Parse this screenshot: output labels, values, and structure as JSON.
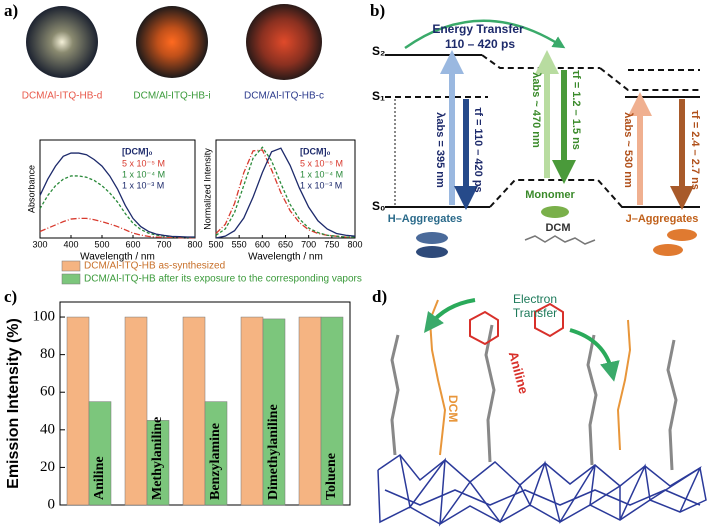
{
  "panel_labels": [
    "a)",
    "b)",
    "c)",
    "d)"
  ],
  "photos": {
    "labels": [
      "DCM/Al-ITQ-HB-d",
      "DCM/Al-ITQ-HB-i",
      "DCM/Al-ITQ-HB-c"
    ],
    "colors": [
      "#e8584a",
      "#3a9a3a",
      "#2b3a8c"
    ]
  },
  "chart_data": [
    {
      "type": "line",
      "ylabel": "Absorbance",
      "xlabel": "Wavelength / nm",
      "legend_title": "[DCM]₀",
      "x": [
        300,
        325,
        350,
        375,
        400,
        425,
        450,
        475,
        500,
        525,
        550,
        575,
        600,
        625,
        650,
        675,
        700,
        725,
        750,
        775,
        800
      ],
      "xlim": [
        300,
        800
      ],
      "xticks": [
        300,
        400,
        500,
        600,
        700,
        800
      ],
      "ylim": [
        0,
        0.3
      ],
      "series": [
        {
          "name": "5 x 10⁻⁵ M",
          "color": "#d83a2e",
          "dash": "6 2 1 2",
          "values": [
            0.02,
            0.03,
            0.04,
            0.05,
            0.058,
            0.06,
            0.06,
            0.056,
            0.05,
            0.043,
            0.035,
            0.025,
            0.015,
            0.009,
            0.005,
            0.003,
            0.002,
            0.002,
            0.001,
            0.001,
            0.001
          ]
        },
        {
          "name": "1 x 10⁻⁴ M",
          "color": "#2a8a3a",
          "dash": "3 2",
          "values": [
            0.09,
            0.13,
            0.16,
            0.18,
            0.19,
            0.19,
            0.186,
            0.176,
            0.16,
            0.138,
            0.11,
            0.075,
            0.045,
            0.026,
            0.015,
            0.009,
            0.006,
            0.004,
            0.003,
            0.002,
            0.002
          ]
        },
        {
          "name": "1 x 10⁻³ M",
          "color": "#1d2a6b",
          "dash": "",
          "values": [
            0.13,
            0.18,
            0.22,
            0.25,
            0.26,
            0.26,
            0.255,
            0.24,
            0.22,
            0.19,
            0.15,
            0.1,
            0.06,
            0.035,
            0.02,
            0.012,
            0.008,
            0.005,
            0.004,
            0.003,
            0.003
          ]
        }
      ]
    },
    {
      "type": "line",
      "ylabel": "Normalized Intensity",
      "xlabel": "Wavelength / nm",
      "legend_title": "[DCM]₀",
      "x": [
        500,
        520,
        540,
        560,
        580,
        600,
        620,
        640,
        660,
        680,
        700,
        720,
        740,
        760,
        780,
        800
      ],
      "xlim": [
        500,
        800
      ],
      "xticks": [
        500,
        550,
        600,
        650,
        700,
        750,
        800
      ],
      "ylim": [
        0,
        1.08
      ],
      "series": [
        {
          "name": "5 x 10⁻⁵ M",
          "color": "#d83a2e",
          "dash": "6 2 1 2",
          "values": [
            0.05,
            0.15,
            0.38,
            0.72,
            0.96,
            0.97,
            0.75,
            0.5,
            0.3,
            0.17,
            0.09,
            0.05,
            0.03,
            0.02,
            0.01,
            0.01
          ]
        },
        {
          "name": "1 x 10⁻⁴ M",
          "color": "#2a8a3a",
          "dash": "3 2",
          "values": [
            0.03,
            0.1,
            0.28,
            0.58,
            0.88,
            1.0,
            0.85,
            0.6,
            0.37,
            0.21,
            0.11,
            0.06,
            0.03,
            0.02,
            0.01,
            0.01
          ]
        },
        {
          "name": "1 x 10⁻³ M",
          "color": "#1d2a6b",
          "dash": "",
          "values": [
            0.0,
            0.02,
            0.08,
            0.22,
            0.45,
            0.72,
            0.95,
            0.99,
            0.8,
            0.55,
            0.34,
            0.19,
            0.1,
            0.05,
            0.03,
            0.02
          ]
        }
      ]
    },
    {
      "type": "bar",
      "ylabel": "Emission Intensity (%)",
      "categories": [
        "Aniline",
        "Methylaniline",
        "Benzylamine",
        "Dimethylaniline",
        "Toluene"
      ],
      "ylim": [
        0,
        108
      ],
      "yticks": [
        0,
        20,
        40,
        60,
        80,
        100
      ],
      "series": [
        {
          "name": "DCM/Al-ITQ-HB as-synthesized",
          "color": "#f5b482",
          "values": [
            100,
            100,
            100,
            100,
            100
          ]
        },
        {
          "name": "DCM/Al-ITQ-HB after its exposure to the corresponding vapors",
          "color": "#7cc67c",
          "values": [
            55,
            45,
            55,
            99,
            100
          ]
        }
      ]
    }
  ],
  "energy_diagram": {
    "levels": [
      "S₂",
      "S₁",
      "S₀"
    ],
    "transfer": [
      "Energy Transfer",
      "110 – 420 ps"
    ],
    "arrows": [
      "λabs = 395 nm",
      "τf = 110 – 420 ps",
      "λabs ~ 470 nm",
      "τf = 1.2 – 1.5 ns",
      "λabs ~ 530 nm",
      "τf = 2.4 – 2.7 ns"
    ],
    "species": [
      "H–Aggregates",
      "Monomer",
      "DCM",
      "J–Aggregates"
    ]
  },
  "mechanism": {
    "transfer": [
      "Electron",
      "Transfer"
    ],
    "labels": [
      "Aniline",
      "DCM"
    ]
  }
}
